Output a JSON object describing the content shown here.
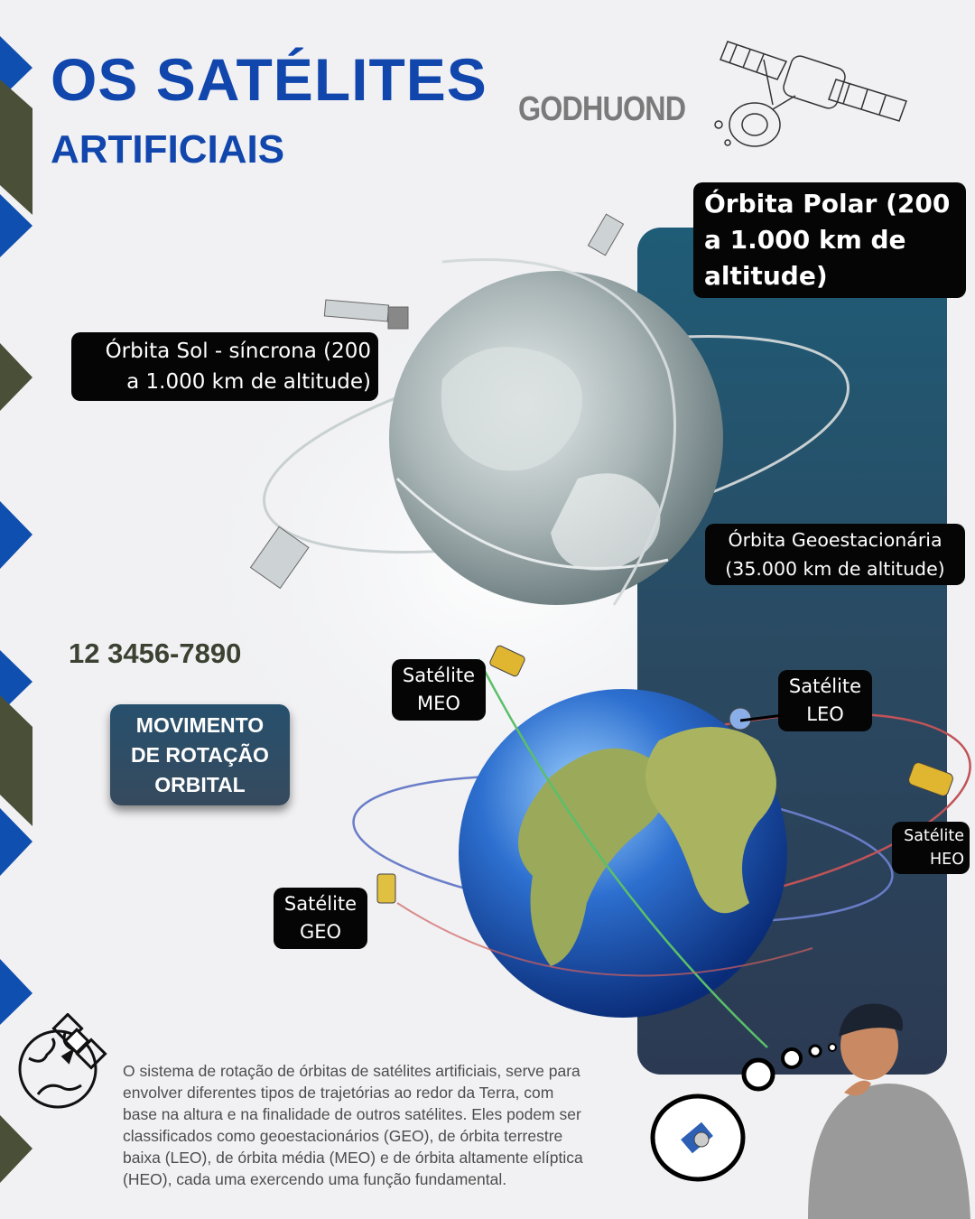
{
  "header": {
    "title_line1": "OS SATÉLITES",
    "title_line2": "ARTIFICIAIS",
    "logo_text": "GODHUOND"
  },
  "orbits": {
    "polar_label": [
      "Órbita Polar (200",
      "a 1.000 km de",
      "altitude)"
    ],
    "sun_sync_label": [
      "Órbita Sol - síncrona (200",
      "a 1.000 km de altitude)"
    ],
    "geo_label": [
      "Órbita Geoestacionária",
      "(35.000 km de altitude)"
    ]
  },
  "contact": {
    "phone": "12 3456-7890"
  },
  "movement_box": [
    "MOVIMENTO",
    "DE ROTAÇÃO",
    "ORBITAL"
  ],
  "satellites": {
    "meo": [
      "Satélite",
      "MEO"
    ],
    "leo": [
      "Satélite",
      "LEO"
    ],
    "heo": [
      "Satélite",
      "HEO"
    ],
    "geo": [
      "Satélite",
      "GEO"
    ]
  },
  "description": "O sistema de rotação de órbitas de satélites artificiais, serve para envolver diferentes tipos de trajetórias ao redor da Terra, com base na altura e na finalidade de outros satélites. Eles podem ser classificados como geoestacionários (GEO), de órbita terrestre baixa (LEO), de órbita média (MEO) e de órbita altamente elíptica (HEO), cada uma exercendo uma função fundamental.",
  "colors": {
    "title_blue": "#1146ad",
    "chevron_blue": "#0f4fb0",
    "chevron_olive": "#4a4f38",
    "panel_top": "#1f5c77",
    "panel_bottom": "#2b3a52",
    "tag_bg": "#050505"
  },
  "icons": [
    "satellite-sketch-icon",
    "globe-satellite-icon",
    "thought-bubble-satellite-icon",
    "thinking-person-illustration"
  ]
}
